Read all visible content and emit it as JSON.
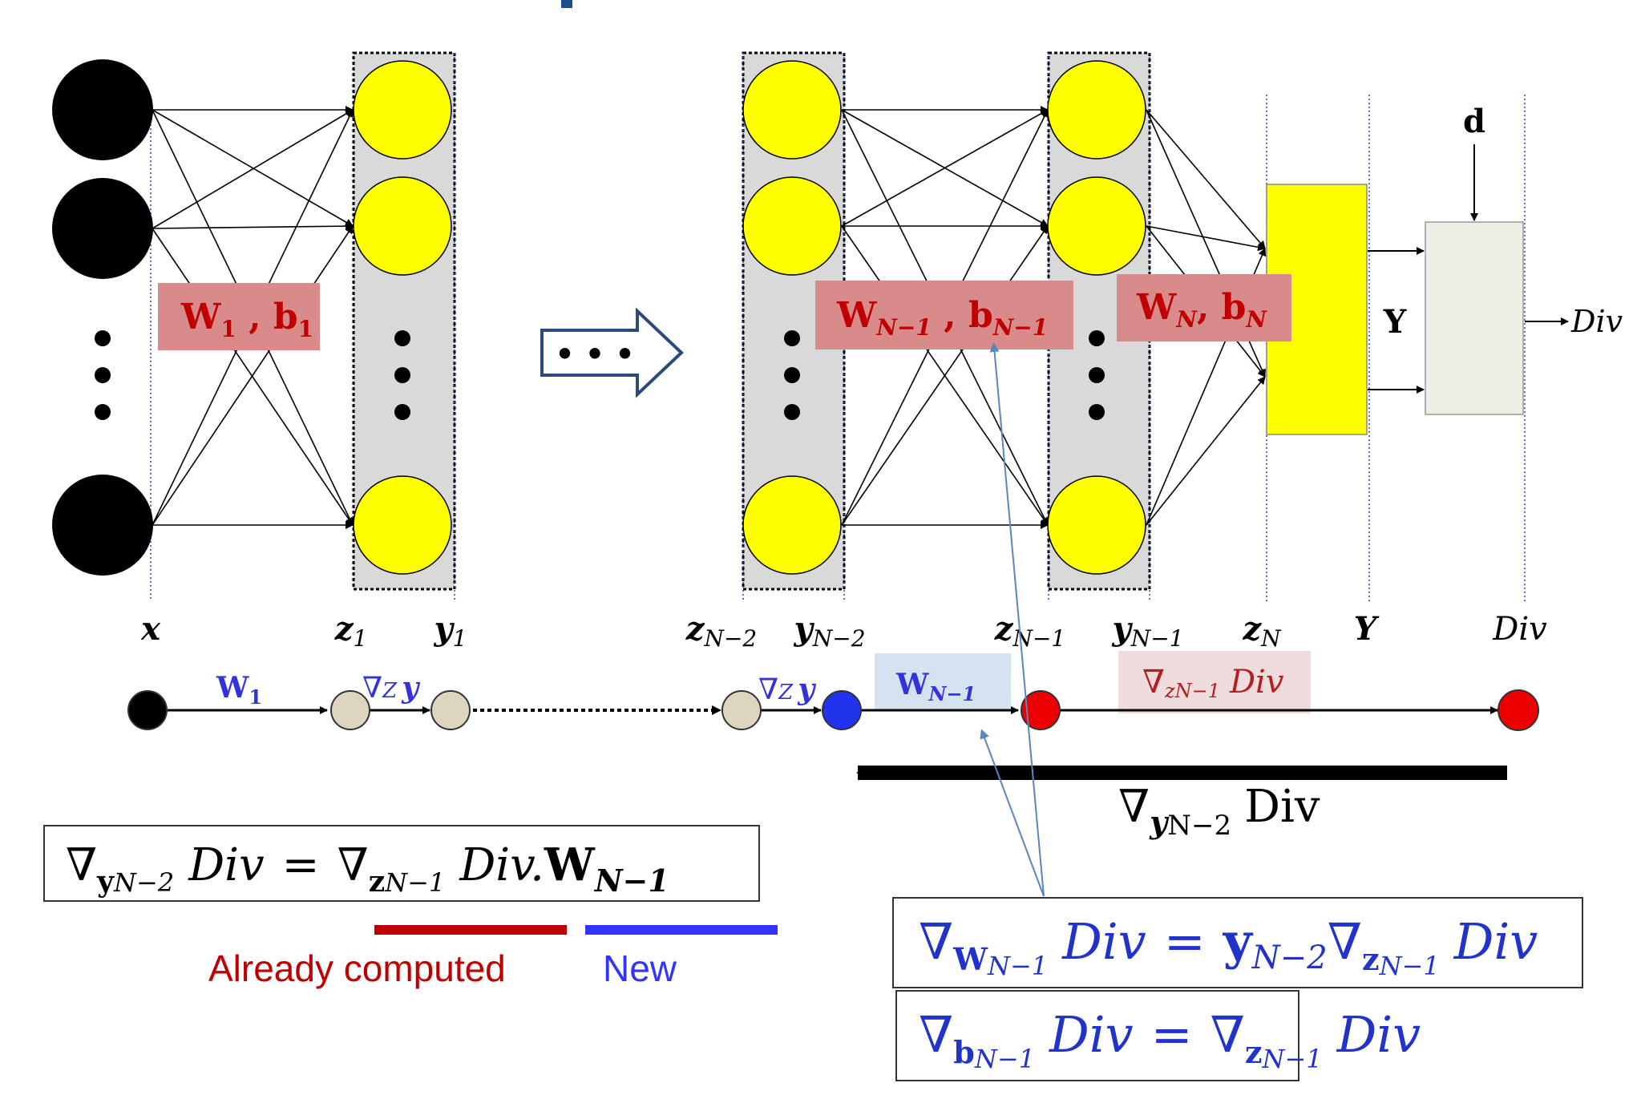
{
  "colors": {
    "neuron_input": "#000000",
    "neuron_hidden": "#ffff00",
    "layer_bg": "#d9d9d9",
    "weight_box_fill": "#d98a8a",
    "weight_box_text": "#c00000",
    "blue_text": "#3333dd",
    "already_computed": "#c00000",
    "new": "#3333ff",
    "output_box": "#ffff00",
    "div_box": "#eeeee4",
    "chain_blue_node": "#2233ee",
    "chain_red_node": "#ee0000",
    "chain_tan_node": "#ddd5c0",
    "arrow_callout": "#5a86c0"
  },
  "weights": {
    "first": {
      "w": "W",
      "w_sub": "1",
      "sep": " , ",
      "b": "b",
      "b_sub": "1"
    },
    "mid": {
      "w": "W",
      "w_sub": "N−1",
      "sep": " , ",
      "b": "b",
      "b_sub": "N−1"
    },
    "last": {
      "w": "W",
      "w_sub": "N",
      "sep": ", ",
      "b": "b",
      "b_sub": "N"
    }
  },
  "continuation_dots": "• • •",
  "output": {
    "d_label": "d",
    "y_label": "Y",
    "div_label": "Div"
  },
  "axis_labels": [
    {
      "main": "x",
      "sub": ""
    },
    {
      "main": "z",
      "sub": "1"
    },
    {
      "main": "y",
      "sub": "1"
    },
    {
      "main": "z",
      "sub": "N−2"
    },
    {
      "main": "y",
      "sub": "N−2"
    },
    {
      "main": "z",
      "sub": "N−1"
    },
    {
      "main": "y",
      "sub": "N−1"
    },
    {
      "main": "z",
      "sub": "N"
    },
    {
      "main": "Y",
      "sub": ""
    },
    {
      "main": "Div",
      "sub": ""
    }
  ],
  "chain": {
    "label_w1": {
      "main": "W",
      "sub": "1"
    },
    "label_gradzy_1": {
      "nabla": "∇",
      "sub": "Z",
      "y": "y"
    },
    "label_gradzy_2": {
      "nabla": "∇",
      "sub": "Z",
      "y": "y"
    },
    "label_wn1": {
      "main": "W",
      "sub": "N−1"
    },
    "label_grad_div": {
      "nabla": "∇",
      "sub": "zN−1",
      "div": "Div"
    }
  },
  "backward": {
    "nabla": "∇",
    "sub_y": "y",
    "sub_n": "N−2",
    "text": "Div"
  },
  "formula_main": {
    "lhs_nabla": "∇",
    "lhs_sub": "y",
    "lhs_subsub": "N−2",
    "lhs_div": "Div",
    "eq": "=",
    "rhs_nabla": "∇",
    "rhs_sub": "z",
    "rhs_subsub": "N−1",
    "rhs_div": "Div.",
    "w": "W",
    "w_sub": "N−1"
  },
  "legend": {
    "already": "Already computed",
    "new": "New"
  },
  "formula_w": {
    "nabla": "∇",
    "sub": "W",
    "subsub": "N−1",
    "div": "Div",
    "eq": "=",
    "y": "y",
    "y_sub": "N−2",
    "nabla2": "∇",
    "sub2": "z",
    "subsub2": "N−1",
    "div2": "Div"
  },
  "formula_b": {
    "nabla": "∇",
    "sub": "b",
    "subsub": "N−1",
    "div": "Div",
    "eq": "=",
    "nabla2": "∇",
    "sub2": "z",
    "subsub2": "N−1",
    "div2": "Div"
  }
}
